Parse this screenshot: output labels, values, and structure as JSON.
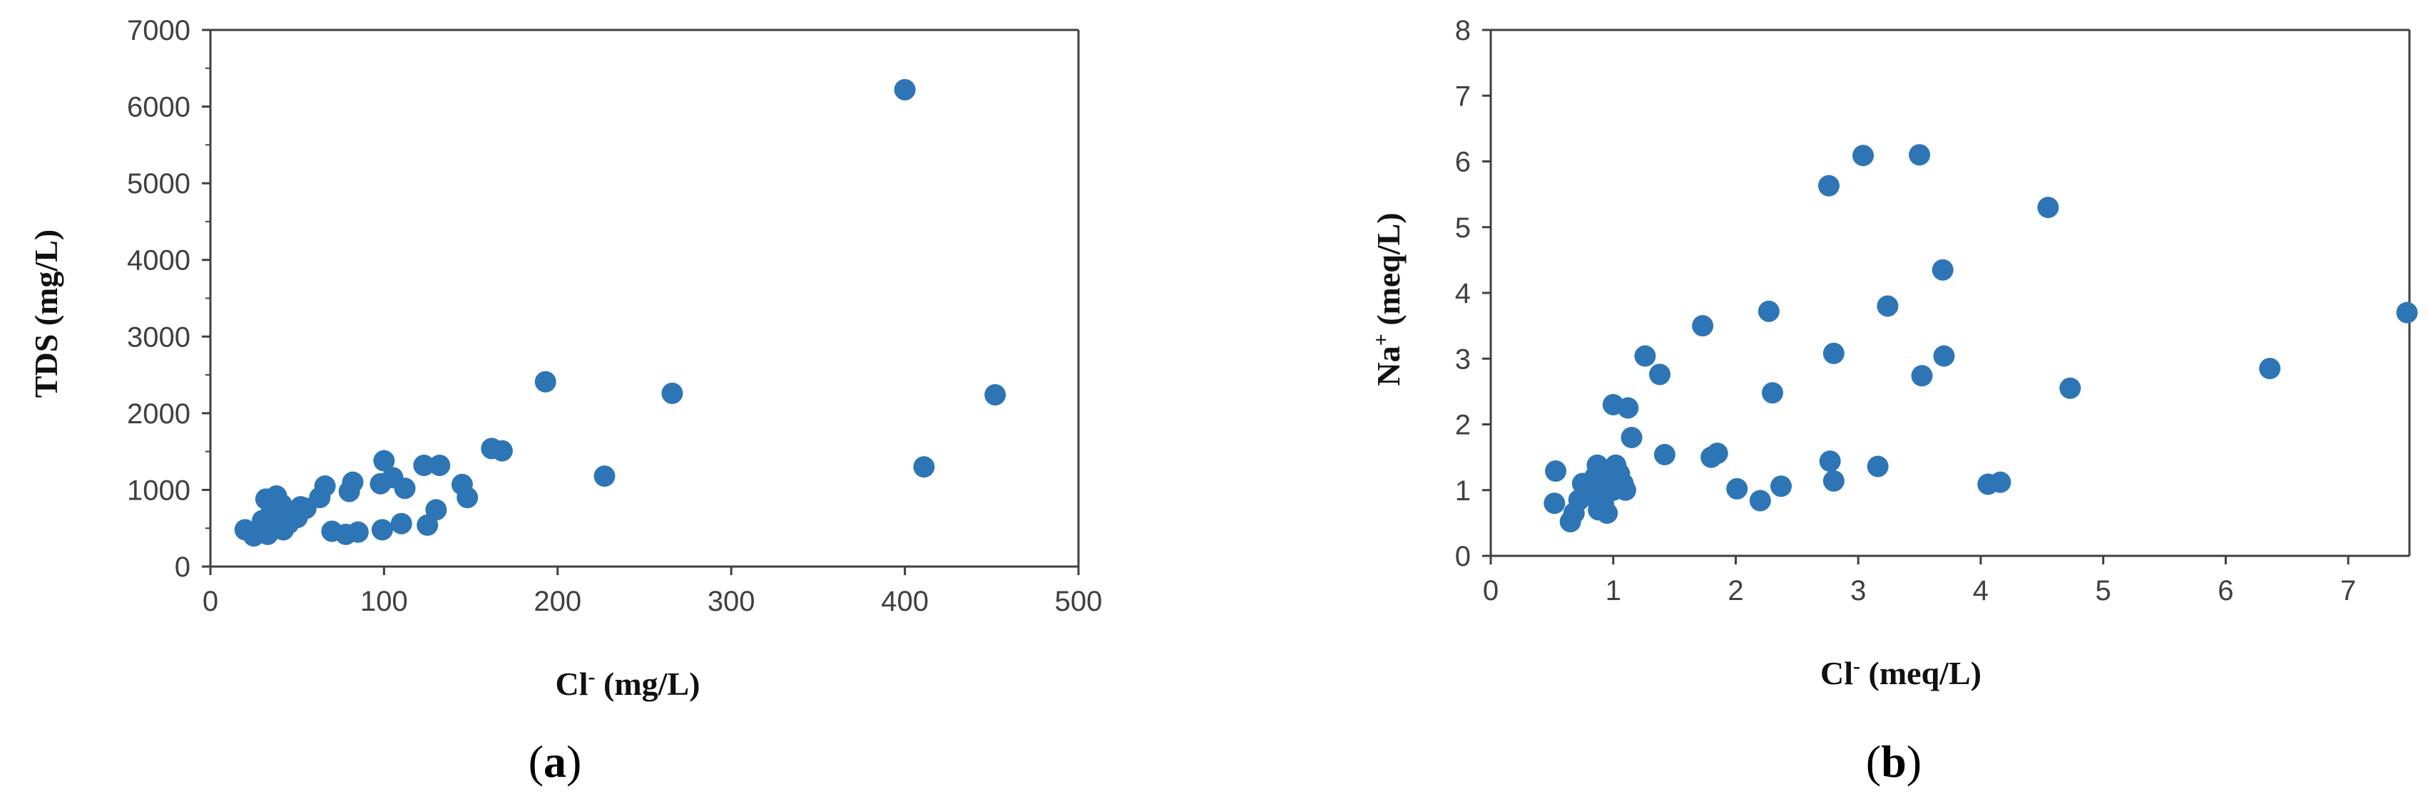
{
  "chart_data": [
    {
      "type": "scatter",
      "panel_label": "a",
      "xlabel_main": "Cl",
      "xlabel_sup": "-",
      "xlabel_unit": " (mg/L)",
      "ylabel": "TDS (mg/L)",
      "xlim": [
        0,
        500
      ],
      "ylim": [
        0,
        7000
      ],
      "xticks": [
        0,
        100,
        200,
        300,
        400,
        500
      ],
      "yticks": [
        0,
        1000,
        2000,
        3000,
        4000,
        5000,
        6000,
        7000
      ],
      "grid": false,
      "legend": "none",
      "marker_color": "#2E75B6",
      "points": [
        [
          20,
          480
        ],
        [
          25,
          400
        ],
        [
          28,
          450
        ],
        [
          30,
          600
        ],
        [
          32,
          880
        ],
        [
          33,
          420
        ],
        [
          35,
          700
        ],
        [
          36,
          520
        ],
        [
          38,
          920
        ],
        [
          40,
          600
        ],
        [
          41,
          810
        ],
        [
          42,
          480
        ],
        [
          44,
          650
        ],
        [
          45,
          560
        ],
        [
          48,
          700
        ],
        [
          50,
          640
        ],
        [
          52,
          780
        ],
        [
          55,
          760
        ],
        [
          63,
          900
        ],
        [
          66,
          1050
        ],
        [
          70,
          460
        ],
        [
          78,
          420
        ],
        [
          80,
          980
        ],
        [
          82,
          1100
        ],
        [
          85,
          450
        ],
        [
          98,
          1080
        ],
        [
          99,
          480
        ],
        [
          100,
          1380
        ],
        [
          105,
          1160
        ],
        [
          110,
          560
        ],
        [
          112,
          1020
        ],
        [
          123,
          1320
        ],
        [
          125,
          540
        ],
        [
          132,
          1320
        ],
        [
          130,
          740
        ],
        [
          145,
          1070
        ],
        [
          148,
          900
        ],
        [
          162,
          1540
        ],
        [
          168,
          1510
        ],
        [
          193,
          2410
        ],
        [
          227,
          1180
        ],
        [
          266,
          2260
        ],
        [
          400,
          6220
        ],
        [
          411,
          1300
        ],
        [
          452,
          2240
        ]
      ]
    },
    {
      "type": "scatter",
      "panel_label": "b",
      "xlabel_main": "Cl",
      "xlabel_sup": "-",
      "xlabel_unit": " (meq/L)",
      "ylabel_main": "Na",
      "ylabel_sup": "+",
      "ylabel_unit": " (meq/L)",
      "xlim": [
        0,
        7.5
      ],
      "ylim": [
        0,
        8
      ],
      "xticks": [
        0,
        1,
        2,
        3,
        4,
        5,
        6,
        7
      ],
      "yticks": [
        0,
        1,
        2,
        3,
        4,
        5,
        6,
        7,
        8
      ],
      "grid": false,
      "legend": "none",
      "marker_color": "#2E75B6",
      "points": [
        [
          0.53,
          1.29
        ],
        [
          0.52,
          0.8
        ],
        [
          0.65,
          0.52
        ],
        [
          0.68,
          0.65
        ],
        [
          0.72,
          0.85
        ],
        [
          0.75,
          1.1
        ],
        [
          0.8,
          0.92
        ],
        [
          0.85,
          1.2
        ],
        [
          0.87,
          1.38
        ],
        [
          0.88,
          0.7
        ],
        [
          0.9,
          1.0
        ],
        [
          0.92,
          0.8
        ],
        [
          0.95,
          1.3
        ],
        [
          0.95,
          0.65
        ],
        [
          0.98,
          1.15
        ],
        [
          1.0,
          2.3
        ],
        [
          1.0,
          1.0
        ],
        [
          1.02,
          1.38
        ],
        [
          1.05,
          1.25
        ],
        [
          1.08,
          1.1
        ],
        [
          1.1,
          1.0
        ],
        [
          1.12,
          2.25
        ],
        [
          1.15,
          1.8
        ],
        [
          1.26,
          3.04
        ],
        [
          1.38,
          2.76
        ],
        [
          1.42,
          1.54
        ],
        [
          1.73,
          3.5
        ],
        [
          1.8,
          1.5
        ],
        [
          1.85,
          1.56
        ],
        [
          2.01,
          1.02
        ],
        [
          2.2,
          0.84
        ],
        [
          2.27,
          3.72
        ],
        [
          2.3,
          2.48
        ],
        [
          2.37,
          1.06
        ],
        [
          2.76,
          5.63
        ],
        [
          2.77,
          1.44
        ],
        [
          2.8,
          3.08
        ],
        [
          2.8,
          1.14
        ],
        [
          3.04,
          6.09
        ],
        [
          3.16,
          1.36
        ],
        [
          3.24,
          3.8
        ],
        [
          3.5,
          6.1
        ],
        [
          3.52,
          2.74
        ],
        [
          3.69,
          4.35
        ],
        [
          3.7,
          3.04
        ],
        [
          4.06,
          1.09
        ],
        [
          4.16,
          1.12
        ],
        [
          4.55,
          5.3
        ],
        [
          4.73,
          2.55
        ],
        [
          6.36,
          2.85
        ],
        [
          7.48,
          3.7
        ]
      ]
    }
  ]
}
